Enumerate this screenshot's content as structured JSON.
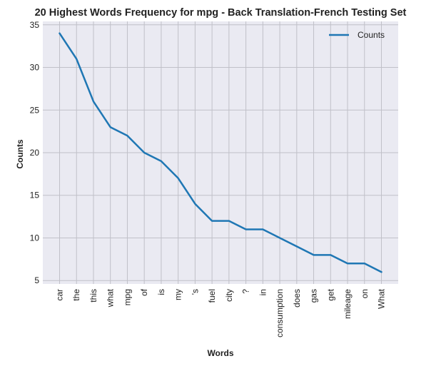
{
  "chart_data": {
    "type": "line",
    "title": "20 Highest Words Frequency for mpg - Back Translation-French Testing Set",
    "xlabel": "Words",
    "ylabel": "Counts",
    "categories": [
      "car",
      "the",
      "this",
      "what",
      "mpg",
      "of",
      "is",
      "my",
      "'s",
      "fuel",
      "city",
      "?",
      "in",
      "consumption",
      "does",
      "gas",
      "get",
      "mileage",
      "on",
      "What"
    ],
    "series": [
      {
        "name": "Counts",
        "values": [
          34,
          31,
          26,
          23,
          22,
          20,
          19,
          17,
          14,
          12,
          12,
          11,
          11,
          10,
          9,
          8,
          8,
          7,
          7,
          6
        ],
        "color": "#1f77b4"
      }
    ],
    "ylim": [
      4.6,
      35.4
    ],
    "yticks": [
      5,
      10,
      15,
      20,
      25,
      30,
      35
    ],
    "grid": true,
    "legend_position": "top-right",
    "colors": {
      "plot_background": "#eaeaf2",
      "grid": "#c0c0c8",
      "line": "#1f77b4"
    }
  }
}
